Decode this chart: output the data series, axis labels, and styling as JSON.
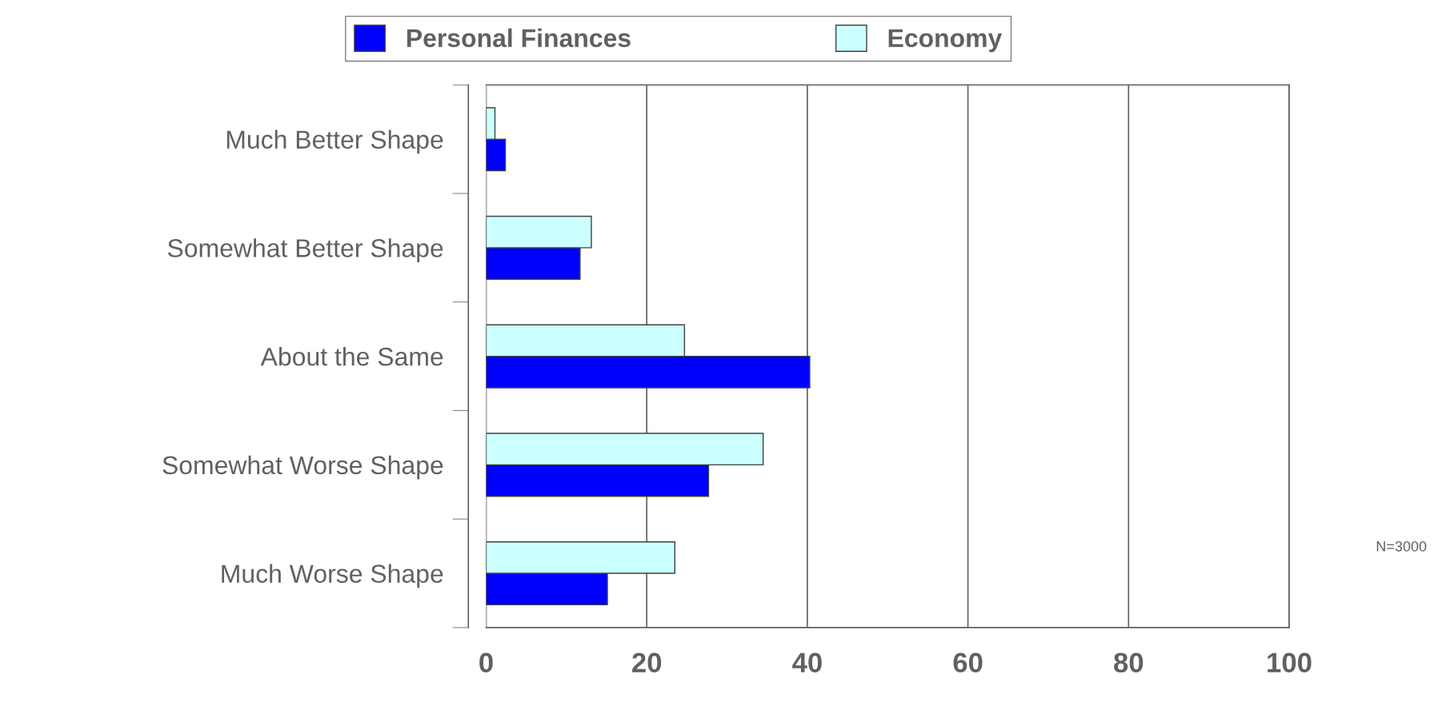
{
  "chart_data": {
    "type": "bar",
    "orientation": "horizontal",
    "categories": [
      "Much Better Shape",
      "Somewhat Better Shape",
      "About the Same",
      "Somewhat Worse Shape",
      "Much Worse Shape"
    ],
    "series": [
      {
        "name": "Personal Finances",
        "color": "#0000ff",
        "values": [
          2.4,
          11.7,
          40.3,
          27.7,
          15.1
        ]
      },
      {
        "name": "Economy",
        "color": "#ccffff",
        "values": [
          1.1,
          13.1,
          24.7,
          34.5,
          23.5
        ]
      }
    ],
    "xlim": [
      0,
      100
    ],
    "xticks": [
      0,
      20,
      40,
      60,
      80,
      100
    ],
    "grid": "x",
    "legend": "top",
    "annotations": [
      "N=3000"
    ]
  }
}
